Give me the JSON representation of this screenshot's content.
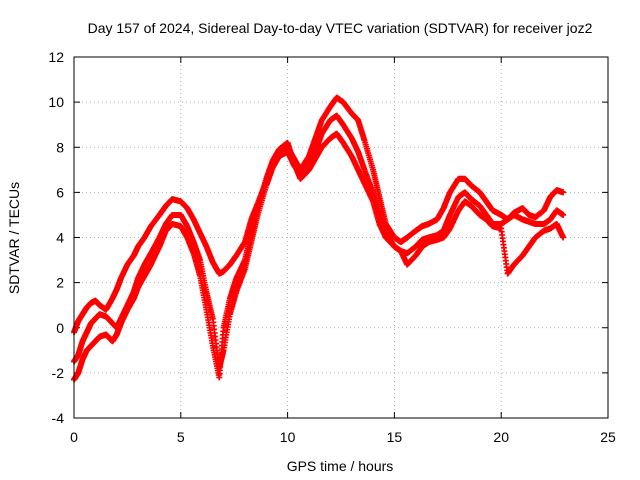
{
  "chart_data": {
    "type": "scatter",
    "title": "Day 157 of 2024, Sidereal Day-to-day VTEC variation (SDTVAR) for receiver joz2",
    "xlabel": "GPS time / hours",
    "ylabel": "SDTVAR / TECUs",
    "xlim": [
      0,
      25
    ],
    "ylim": [
      -4,
      12
    ],
    "x_ticks": [
      0,
      5,
      10,
      15,
      20,
      25
    ],
    "y_ticks": [
      -4,
      -2,
      0,
      2,
      4,
      6,
      8,
      10,
      12
    ],
    "grid": true,
    "marker": "+",
    "color": "#ff0000",
    "series": [
      {
        "x": [
          0.0,
          0.2,
          0.4,
          0.6,
          0.8,
          1.0,
          1.2,
          1.5,
          1.8,
          2.0,
          2.2,
          2.5,
          2.8,
          3.0,
          3.3,
          3.6,
          4.0,
          4.3,
          4.6,
          5.0,
          5.3,
          5.6,
          5.9,
          6.2,
          6.5,
          6.8,
          7.0,
          7.3,
          7.6,
          8.0,
          8.3,
          8.6,
          9.0,
          9.3,
          9.6,
          10.0,
          10.3,
          10.6,
          11.0,
          11.3,
          11.6,
          12.0,
          12.3,
          12.6,
          13.0,
          13.3,
          13.6,
          14.0,
          14.3,
          14.6,
          15.0,
          15.3,
          15.6,
          16.0,
          16.3,
          16.6,
          17.0,
          17.3,
          17.6,
          18.0,
          18.3,
          18.6,
          19.0,
          19.3,
          19.6,
          20.0,
          20.3,
          20.6,
          21.0,
          21.3,
          21.6,
          22.0,
          22.3,
          22.6,
          22.9
        ],
        "y": [
          -0.2,
          0.3,
          0.6,
          0.9,
          1.1,
          1.2,
          1.0,
          0.8,
          1.3,
          1.7,
          2.2,
          2.8,
          3.2,
          3.6,
          4.0,
          4.5,
          5.0,
          5.4,
          5.7,
          5.6,
          5.3,
          4.8,
          4.2,
          3.6,
          2.9,
          2.4,
          2.5,
          2.8,
          3.2,
          3.8,
          4.8,
          5.5,
          6.5,
          7.3,
          7.8,
          8.0,
          7.5,
          7.0,
          7.6,
          8.4,
          9.2,
          9.8,
          10.2,
          10.0,
          9.5,
          9.2,
          8.3,
          7.0,
          5.8,
          4.6,
          4.0,
          3.8,
          4.0,
          4.3,
          4.5,
          4.6,
          4.8,
          5.3,
          6.0,
          6.6,
          6.6,
          6.3,
          6.0,
          5.6,
          5.2,
          5.0,
          4.8,
          5.1,
          5.3,
          5.0,
          4.9,
          5.2,
          5.8,
          6.1,
          6.0
        ]
      },
      {
        "x": [
          0.0,
          0.2,
          0.4,
          0.6,
          0.8,
          1.0,
          1.2,
          1.5,
          1.8,
          2.0,
          2.2,
          2.5,
          2.8,
          3.0,
          3.3,
          3.6,
          4.0,
          4.3,
          4.6,
          5.0,
          5.3,
          5.6,
          5.9,
          6.2,
          6.5,
          6.8,
          7.0,
          7.3,
          7.6,
          8.0,
          8.3,
          8.6,
          9.0,
          9.3,
          9.6,
          10.0,
          10.3,
          10.6,
          11.0,
          11.3,
          11.6,
          12.0,
          12.3,
          12.6,
          13.0,
          13.3,
          13.6,
          14.0,
          14.3,
          14.6,
          15.0,
          15.3,
          15.6,
          16.0,
          16.3,
          16.6,
          17.0,
          17.3,
          17.6,
          18.0,
          18.3,
          18.6,
          19.0,
          19.3,
          19.6,
          20.0,
          20.3,
          20.6,
          21.0,
          21.3,
          21.6,
          22.0,
          22.3,
          22.6,
          22.9
        ],
        "y": [
          -1.5,
          -1.2,
          -0.6,
          -0.2,
          0.2,
          0.4,
          0.6,
          0.5,
          0.2,
          0.0,
          0.4,
          1.0,
          1.6,
          2.2,
          2.8,
          3.3,
          4.0,
          4.6,
          5.0,
          5.0,
          4.5,
          3.8,
          3.0,
          1.6,
          0.4,
          -1.8,
          -1.0,
          0.6,
          1.6,
          2.6,
          3.8,
          5.0,
          6.3,
          7.1,
          7.6,
          7.8,
          7.2,
          6.8,
          7.2,
          7.8,
          8.6,
          9.2,
          9.4,
          9.0,
          8.4,
          7.8,
          7.0,
          6.0,
          5.0,
          4.2,
          3.6,
          3.4,
          3.3,
          3.6,
          3.9,
          4.0,
          4.1,
          4.3,
          5.0,
          5.8,
          6.0,
          5.7,
          5.4,
          5.0,
          4.6,
          4.6,
          4.8,
          5.0,
          4.8,
          4.7,
          4.6,
          4.6,
          4.8,
          5.2,
          5.0
        ]
      },
      {
        "x": [
          0.0,
          0.2,
          0.4,
          0.6,
          0.8,
          1.0,
          1.2,
          1.5,
          1.8,
          2.0,
          2.2,
          2.5,
          2.8,
          3.0,
          3.3,
          3.6,
          4.0,
          4.3,
          4.6,
          5.0,
          5.3,
          5.6,
          5.9,
          6.2,
          6.5,
          6.8,
          7.0,
          7.3,
          7.6,
          8.0,
          8.3,
          8.6,
          9.0,
          9.3,
          9.6,
          10.0,
          10.3,
          10.6,
          11.0,
          11.3,
          11.6,
          12.0,
          12.3,
          12.6,
          13.0,
          13.3,
          13.6,
          14.0,
          14.3,
          14.6,
          15.0,
          15.3,
          15.6,
          16.0,
          16.3,
          16.6,
          17.0,
          17.3,
          17.6,
          18.0,
          18.3,
          18.6,
          19.0,
          19.3,
          19.6,
          20.0,
          20.3,
          20.6,
          21.0,
          21.3,
          21.6,
          22.0,
          22.3,
          22.6,
          22.9
        ],
        "y": [
          -2.3,
          -2.0,
          -1.4,
          -1.0,
          -0.8,
          -0.6,
          -0.4,
          -0.3,
          -0.6,
          -0.3,
          0.2,
          0.8,
          1.3,
          1.8,
          2.3,
          2.8,
          3.6,
          4.3,
          4.6,
          4.5,
          4.0,
          3.3,
          2.3,
          0.8,
          -0.8,
          -2.2,
          0.0,
          1.3,
          2.2,
          3.0,
          4.2,
          5.3,
          6.6,
          7.4,
          7.9,
          8.2,
          7.3,
          6.6,
          7.0,
          7.5,
          8.0,
          8.4,
          8.6,
          8.2,
          7.6,
          7.0,
          6.4,
          5.6,
          4.6,
          4.0,
          3.6,
          3.4,
          2.8,
          3.2,
          3.6,
          3.8,
          3.9,
          4.0,
          4.4,
          5.2,
          5.6,
          5.4,
          5.0,
          4.8,
          4.5,
          4.4,
          2.4,
          2.8,
          3.2,
          3.6,
          4.0,
          4.3,
          4.4,
          4.6,
          4.0
        ]
      }
    ]
  }
}
